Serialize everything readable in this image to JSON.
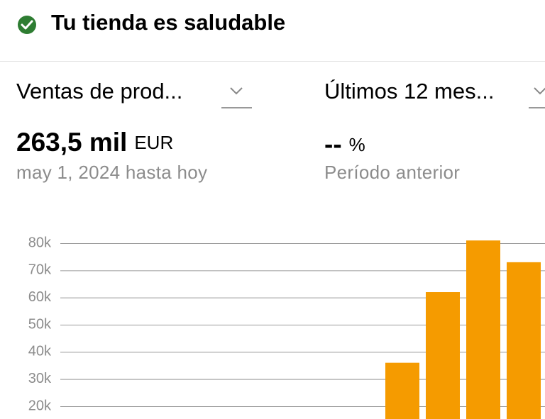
{
  "header": {
    "title": "Tu tienda es saludable"
  },
  "metrics": [
    {
      "selector": "Ventas de prod...",
      "value": "263,5 mil",
      "unit": "EUR",
      "caption": "may 1, 2024 hasta hoy"
    },
    {
      "selector": "Últimos 12 mes...",
      "value": "--",
      "unit": "%",
      "caption": "Período anterior"
    }
  ],
  "chart_data": {
    "type": "bar",
    "categories": [
      null,
      null,
      null,
      null,
      null,
      null,
      null,
      null,
      null,
      null,
      null,
      null
    ],
    "values": [
      null,
      null,
      null,
      null,
      null,
      null,
      null,
      null,
      36000,
      62000,
      81000,
      73000
    ],
    "color": "#f59b00",
    "ylim": [
      15300,
      83400
    ],
    "yticks": [
      {
        "value": 20000,
        "label": "20k"
      },
      {
        "value": 30000,
        "label": "30k"
      },
      {
        "value": 40000,
        "label": "40k"
      },
      {
        "value": 50000,
        "label": "50k"
      },
      {
        "value": 60000,
        "label": "60k"
      },
      {
        "value": 70000,
        "label": "70k"
      },
      {
        "value": 80000,
        "label": "80k"
      }
    ],
    "grid": true
  }
}
